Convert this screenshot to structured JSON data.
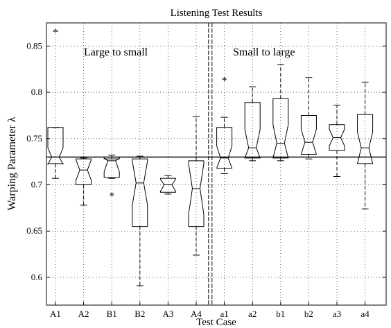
{
  "chart_data": {
    "type": "box",
    "title": "Listening Test Results",
    "xlabel": "Test Case",
    "ylabel": "Warping Parameter λ",
    "ylim": [
      0.57,
      0.875
    ],
    "yticks": [
      "0.6",
      "0.65",
      "0.7",
      "0.75",
      "0.8",
      "0.85"
    ],
    "grid": "dotted",
    "reference_line": 0.73,
    "group_divider_after": "A4",
    "annotations": [
      "Large to small",
      "Small to large"
    ],
    "categories": [
      "A1",
      "A2",
      "B1",
      "B2",
      "A3",
      "A4",
      "a1",
      "a2",
      "b1",
      "b2",
      "a3",
      "a4"
    ],
    "boxes": [
      {
        "q1": 0.723,
        "median": 0.73,
        "q3": 0.762,
        "notch_lo": 0.722,
        "notch_hi": 0.74,
        "whisker_lo": 0.707,
        "whisker_hi": 0.762,
        "outliers": [
          0.866
        ]
      },
      {
        "q1": 0.7,
        "median": 0.716,
        "q3": 0.728,
        "notch_lo": 0.705,
        "notch_hi": 0.727,
        "whisker_lo": 0.678,
        "whisker_hi": 0.729,
        "outliers": []
      },
      {
        "q1": 0.708,
        "median": 0.726,
        "q3": 0.728,
        "notch_lo": 0.714,
        "notch_hi": 0.729,
        "whisker_lo": 0.707,
        "whisker_hi": 0.732,
        "outliers": [
          0.689
        ]
      },
      {
        "q1": 0.655,
        "median": 0.702,
        "q3": 0.728,
        "notch_lo": 0.678,
        "notch_hi": 0.726,
        "whisker_lo": 0.591,
        "whisker_hi": 0.731,
        "outliers": []
      },
      {
        "q1": 0.692,
        "median": 0.7,
        "q3": 0.707,
        "notch_lo": 0.693,
        "notch_hi": 0.706,
        "whisker_lo": 0.69,
        "whisker_hi": 0.71,
        "outliers": []
      },
      {
        "q1": 0.655,
        "median": 0.696,
        "q3": 0.726,
        "notch_lo": 0.668,
        "notch_hi": 0.723,
        "whisker_lo": 0.624,
        "whisker_hi": 0.774,
        "outliers": []
      },
      {
        "q1": 0.718,
        "median": 0.729,
        "q3": 0.762,
        "notch_lo": 0.718,
        "notch_hi": 0.742,
        "whisker_lo": 0.712,
        "whisker_hi": 0.773,
        "outliers": [
          0.814
        ]
      },
      {
        "q1": 0.729,
        "median": 0.74,
        "q3": 0.789,
        "notch_lo": 0.729,
        "notch_hi": 0.76,
        "whisker_lo": 0.726,
        "whisker_hi": 0.806,
        "outliers": []
      },
      {
        "q1": 0.729,
        "median": 0.745,
        "q3": 0.793,
        "notch_lo": 0.729,
        "notch_hi": 0.765,
        "whisker_lo": 0.726,
        "whisker_hi": 0.83,
        "outliers": []
      },
      {
        "q1": 0.733,
        "median": 0.746,
        "q3": 0.775,
        "notch_lo": 0.733,
        "notch_hi": 0.76,
        "whisker_lo": 0.728,
        "whisker_hi": 0.816,
        "outliers": []
      },
      {
        "q1": 0.737,
        "median": 0.751,
        "q3": 0.765,
        "notch_lo": 0.742,
        "notch_hi": 0.76,
        "whisker_lo": 0.709,
        "whisker_hi": 0.786,
        "outliers": []
      },
      {
        "q1": 0.723,
        "median": 0.74,
        "q3": 0.776,
        "notch_lo": 0.723,
        "notch_hi": 0.757,
        "whisker_lo": 0.674,
        "whisker_hi": 0.811,
        "outliers": []
      }
    ]
  }
}
